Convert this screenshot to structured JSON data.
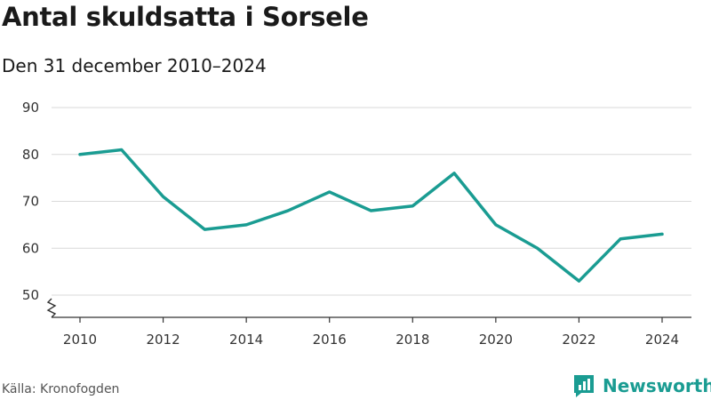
{
  "header": {
    "title": "Antal skuldsatta i Sorsele",
    "subtitle": "Den 31 december 2010–2024"
  },
  "footer": {
    "source": "Källa: Kronofogden",
    "brand": "Newsworthy"
  },
  "colors": {
    "line": "#1a9c92",
    "grid": "#d9d9d9",
    "axis": "#333333",
    "brand": "#1a9c92"
  },
  "chart_data": {
    "type": "line",
    "x": [
      2010,
      2011,
      2012,
      2013,
      2014,
      2015,
      2016,
      2017,
      2018,
      2019,
      2020,
      2021,
      2022,
      2023,
      2024
    ],
    "series": [
      {
        "values": [
          80,
          81,
          71,
          64,
          65,
          68,
          72,
          68,
          69,
          76,
          65,
          60,
          53,
          62,
          63
        ]
      }
    ],
    "x_ticks": [
      "2010",
      "2012",
      "2014",
      "2016",
      "2018",
      "2020",
      "2022",
      "2024"
    ],
    "y_ticks": [
      "50",
      "60",
      "70",
      "80",
      "90"
    ],
    "ylim": [
      50,
      90
    ],
    "y_axis_break": true,
    "grid": true,
    "legend": "none"
  }
}
